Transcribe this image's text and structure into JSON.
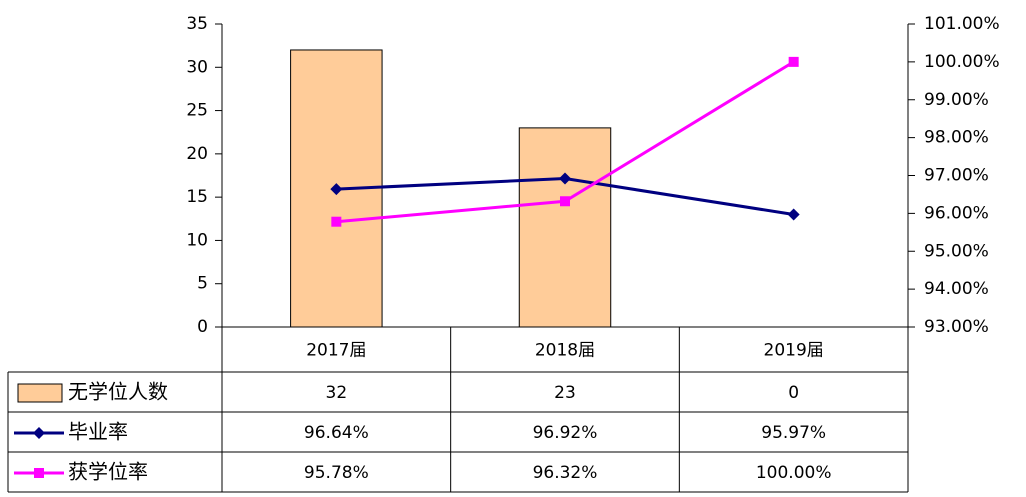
{
  "chart_data": {
    "type": "bar",
    "categories": [
      "2017届",
      "2018届",
      "2019届"
    ],
    "ylim": [
      0,
      35
    ],
    "yticks": [
      0,
      5,
      10,
      15,
      20,
      25,
      30,
      35
    ],
    "y2lim": [
      93,
      101
    ],
    "y2ticks": [
      {
        "value": 93,
        "label": "93.00%"
      },
      {
        "value": 94,
        "label": "94.00%"
      },
      {
        "value": 95,
        "label": "95.00%"
      },
      {
        "value": 96,
        "label": "96.00%"
      },
      {
        "value": 97,
        "label": "97.00%"
      },
      {
        "value": 98,
        "label": "98.00%"
      },
      {
        "value": 99,
        "label": "99.00%"
      },
      {
        "value": 100,
        "label": "100.00%"
      },
      {
        "value": 101,
        "label": "101.00%"
      }
    ],
    "series": [
      {
        "name": "无学位人数",
        "type": "bar",
        "color": "#FFCC99",
        "values": [
          32,
          23,
          0
        ]
      },
      {
        "name": "毕业率",
        "type": "line",
        "axis": "y2",
        "color": "#000080",
        "marker": "diamond",
        "values": [
          96.64,
          96.92,
          95.97
        ],
        "value_labels": [
          "96.64%",
          "96.92%",
          "95.97%"
        ]
      },
      {
        "name": "获学位率",
        "type": "line",
        "axis": "y2",
        "color": "#FF00FF",
        "marker": "square",
        "values": [
          95.78,
          96.32,
          100.0
        ],
        "value_labels": [
          "95.78%",
          "96.32%",
          "100.00%"
        ]
      }
    ]
  }
}
